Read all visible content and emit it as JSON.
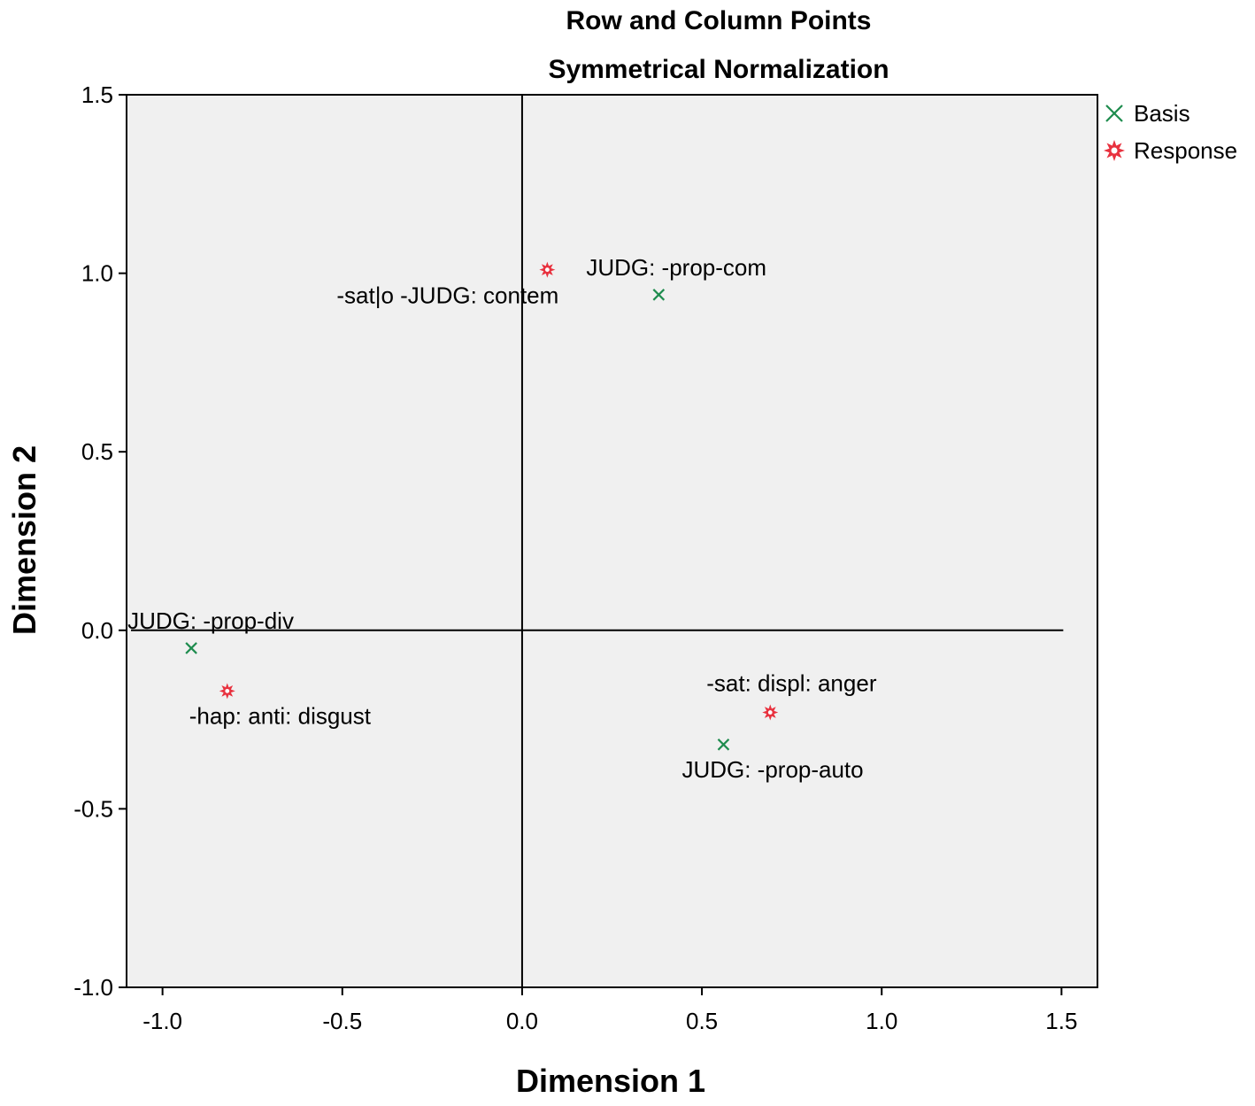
{
  "chart_data": {
    "type": "scatter",
    "title": "Row and Column Points",
    "subtitle": "Symmetrical Normalization",
    "xlabel": "Dimension 1",
    "ylabel": "Dimension 2",
    "xlim": [
      -1.1,
      1.6
    ],
    "ylim": [
      -1.0,
      1.5
    ],
    "x_ticks": [
      -1.0,
      -0.5,
      0.0,
      0.5,
      1.0,
      1.5
    ],
    "x_tick_labels": [
      "-1.0",
      "-0.5",
      "0.0",
      "0.5",
      "1.0",
      "1.5"
    ],
    "y_ticks": [
      -1.0,
      -0.5,
      0.0,
      0.5,
      1.0,
      1.5
    ],
    "y_tick_labels": [
      "-1.0",
      "-0.5",
      "0.0",
      "0.5",
      "1.0",
      "1.5"
    ],
    "grid": false,
    "reference_lines": {
      "x": 0.0,
      "y": 0.0
    },
    "legend_position": "top-right, outside plot",
    "background_color": "#f0f0f0",
    "series": [
      {
        "name": "Basis",
        "marker": "x",
        "color": "#1e8c4e",
        "points": [
          {
            "x": 0.38,
            "y": 0.94,
            "label": "JUDG: -prop-com"
          },
          {
            "x": -0.92,
            "y": -0.05,
            "label": "JUDG: -prop-div"
          },
          {
            "x": 0.56,
            "y": -0.32,
            "label": "JUDG: -prop-auto"
          }
        ]
      },
      {
        "name": "Response",
        "marker": "star",
        "color": "#e8323f",
        "points": [
          {
            "x": 0.07,
            "y": 1.01,
            "label": "-sat|o -JUDG: contem"
          },
          {
            "x": -0.82,
            "y": -0.17,
            "label": "-hap: anti: disgust"
          },
          {
            "x": 0.69,
            "y": -0.23,
            "label": "-sat: displ: anger"
          }
        ]
      }
    ]
  }
}
